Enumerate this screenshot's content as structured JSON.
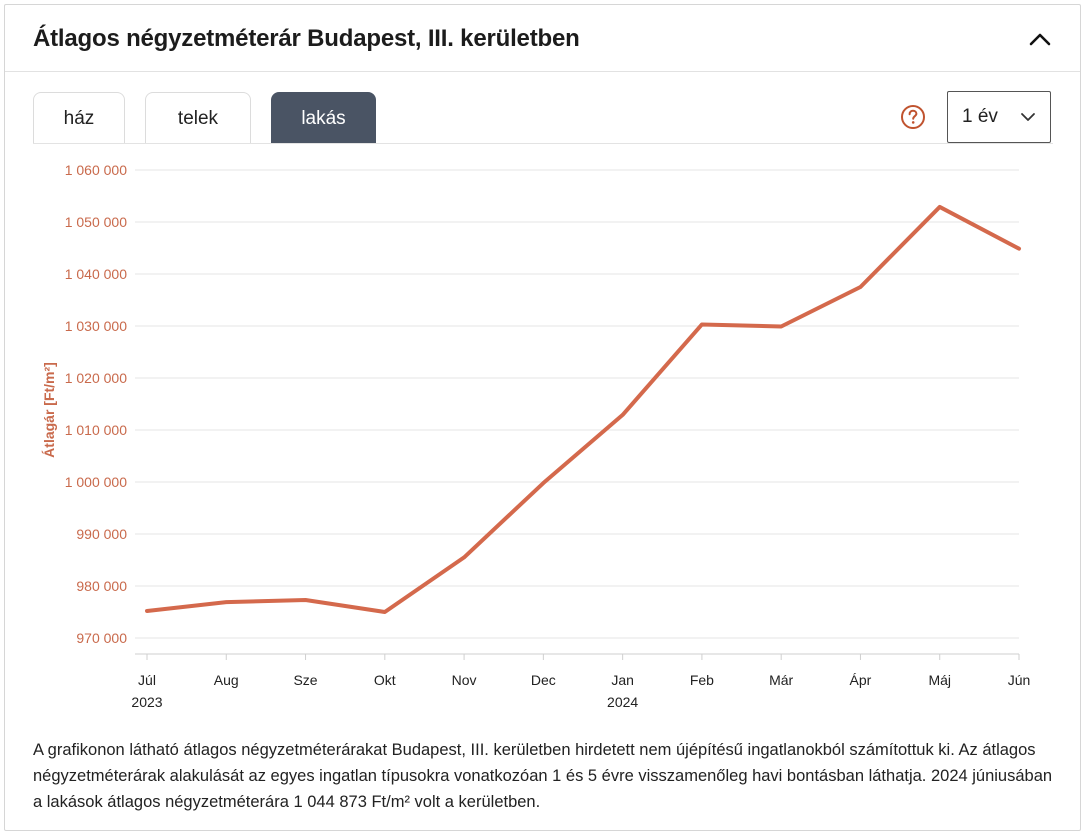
{
  "header": {
    "title": "Átlagos négyzetméterár Budapest, III. kerületben"
  },
  "tabs": [
    {
      "label": "ház",
      "active": false
    },
    {
      "label": "telek",
      "active": false
    },
    {
      "label": "lakás",
      "active": true
    }
  ],
  "period_select": {
    "value": "1 év"
  },
  "chart_data": {
    "type": "line",
    "title": "",
    "ylabel": "Átlagár [Ft/m²]",
    "xlabel": "",
    "ylim": [
      970000,
      1060000
    ],
    "yticks": [
      970000,
      980000,
      990000,
      1000000,
      1010000,
      1020000,
      1030000,
      1040000,
      1050000,
      1060000
    ],
    "ytick_labels": [
      "970 000",
      "980 000",
      "990 000",
      "1 000 000",
      "1 010 000",
      "1 020 000",
      "1 030 000",
      "1 040 000",
      "1 050 000",
      "1 060 000"
    ],
    "categories": [
      "Júl",
      "Aug",
      "Sze",
      "Okt",
      "Nov",
      "Dec",
      "Jan",
      "Feb",
      "Már",
      "Ápr",
      "Máj",
      "Jún"
    ],
    "year_labels": [
      {
        "index": 0,
        "label": "2023"
      },
      {
        "index": 6,
        "label": "2024"
      }
    ],
    "series": [
      {
        "name": "lakás",
        "color": "#d4694c",
        "values": [
          975200,
          976900,
          977300,
          975000,
          985500,
          999800,
          1012900,
          1030300,
          1029900,
          1037500,
          1052900,
          1044873
        ]
      }
    ],
    "grid": true
  },
  "colors": {
    "accent": "#d4694c",
    "tab_active": "#4a5464",
    "grid": "#e6e6e6",
    "axis_text": "#c96a4c"
  },
  "caption": "A grafikonon látható átlagos négyzetméterárakat Budapest, III. kerületben hirdetett nem újépítésű ingatlanokból számítottuk ki. Az átlagos négyzetméterárak alakulását az egyes ingatlan típusokra vonatkozóan 1 és 5 évre visszamenőleg havi bontásban láthatja. 2024 júniusában a lakások átlagos négyzetméterára 1 044 873 Ft/m² volt a kerületben."
}
